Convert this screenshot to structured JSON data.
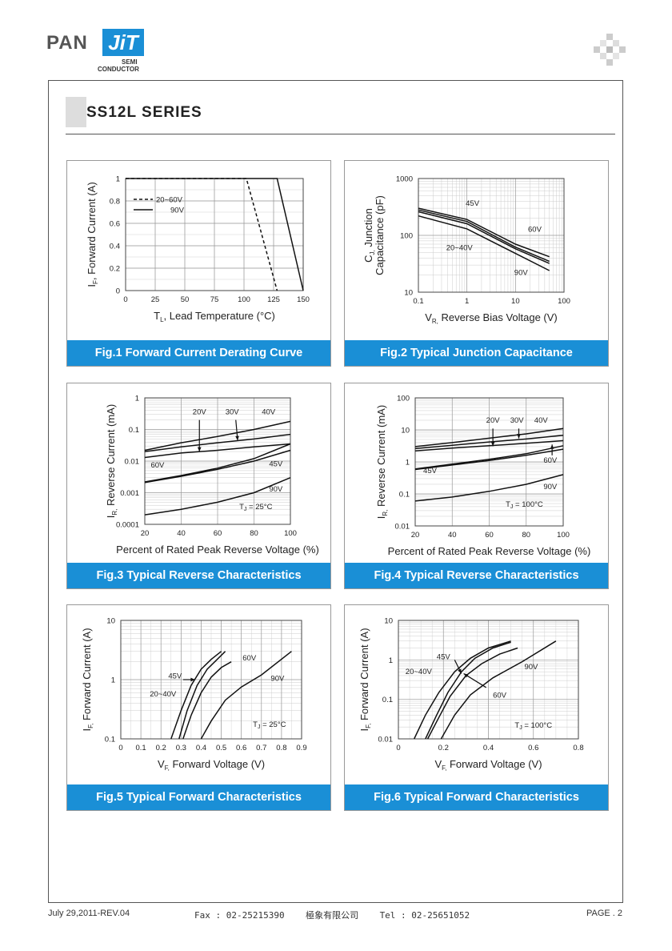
{
  "brand": {
    "pan": "PAN",
    "jit": "JiT",
    "semi": "SEMI",
    "conductor": "CONDUCTOR"
  },
  "page_title": "SS12L SERIES",
  "footer": {
    "date_rev": "July 29,2011-REV.04",
    "contact": "Fax : 02-25215390    極象有限公司    Tel : 02-25651052",
    "page": "PAGE . 2"
  },
  "chart_data": [
    {
      "type": "line",
      "title": "Fig.1 Forward Current Derating Curve",
      "xlabel": "T",
      "xlabel_sub": "L",
      "xlabel_rest": ", Lead Temperature  (°C)",
      "ylabel": "I",
      "ylabel_sub": "F",
      "ylabel_rest": ", Forward Current (A)",
      "xlim": [
        0,
        150
      ],
      "ylim": [
        0,
        1
      ],
      "xscale": "linear",
      "yscale": "linear",
      "xticks": [
        0,
        25,
        50,
        75,
        100,
        125,
        150
      ],
      "yticks": [
        0,
        0.2,
        0.4,
        0.6,
        0.8,
        1
      ],
      "ytick_labels": [
        "0",
        "0.2",
        "0.4",
        "0.6",
        "0.8",
        "1"
      ],
      "legend": [
        {
          "label": "20~60V",
          "style": "dashed"
        },
        {
          "label": "90V",
          "style": "solid"
        }
      ],
      "legend_position": "top-left",
      "series": [
        {
          "name": "20~60V",
          "style": "dashed",
          "x": [
            0,
            102,
            128
          ],
          "y": [
            1,
            1,
            0
          ]
        },
        {
          "name": "90V",
          "style": "solid",
          "x": [
            0,
            128,
            150
          ],
          "y": [
            1,
            1,
            0
          ]
        }
      ],
      "annotations": []
    },
    {
      "type": "line",
      "title": "Fig.2 Typical Junction Capacitance",
      "xlabel": "V",
      "xlabel_sub": "R,",
      "xlabel_rest": " Reverse Bias Voltage (V)",
      "ylabel": "C",
      "ylabel_sub": "J,",
      "ylabel_rest": " Junction",
      "ylabel2": "Capacitance (pF)",
      "xlim": [
        0.1,
        100
      ],
      "ylim": [
        10,
        1000
      ],
      "xscale": "log",
      "yscale": "log",
      "xticks": [
        0.1,
        1,
        10,
        100
      ],
      "xtick_labels": [
        "0.1",
        "1",
        "10",
        "100"
      ],
      "yticks": [
        10,
        100,
        1000
      ],
      "ytick_labels": [
        "10",
        "100",
        "1000"
      ],
      "series": [
        {
          "name": "45V",
          "x": [
            0.1,
            1,
            10,
            50
          ],
          "y": [
            300,
            190,
            70,
            42
          ]
        },
        {
          "name": "60V",
          "x": [
            0.1,
            1,
            10,
            50
          ],
          "y": [
            280,
            175,
            62,
            35
          ]
        },
        {
          "name": "20~40V",
          "x": [
            0.1,
            1,
            10,
            50
          ],
          "y": [
            260,
            160,
            58,
            32
          ]
        },
        {
          "name": "90V",
          "x": [
            0.1,
            1,
            10,
            50
          ],
          "y": [
            220,
            130,
            48,
            24
          ]
        }
      ],
      "annotations": [
        {
          "text": "45V",
          "x": 1.3,
          "y": 330
        },
        {
          "text": "60V",
          "x": 25,
          "y": 115
        },
        {
          "text": "20~40V",
          "x": 0.7,
          "y": 55
        },
        {
          "text": "90V",
          "x": 13,
          "y": 20
        }
      ]
    },
    {
      "type": "line",
      "title": "Fig.3 Typical Reverse Characteristics",
      "xlabel": "Percent of Rated Peak Reverse Voltage (%)",
      "ylabel": "I",
      "ylabel_sub": "R,",
      "ylabel_rest": " Reverse Current (mA)",
      "xlim": [
        20,
        100
      ],
      "ylim": [
        0.0001,
        1
      ],
      "xscale": "linear",
      "yscale": "log",
      "xticks": [
        20,
        40,
        60,
        80,
        100
      ],
      "yticks": [
        0.0001,
        0.001,
        0.01,
        0.1,
        1
      ],
      "ytick_labels": [
        "0.0001",
        "0.001",
        "0.01",
        "0.1",
        "1"
      ],
      "series": [
        {
          "name": "40V",
          "x": [
            20,
            40,
            60,
            80,
            100
          ],
          "y": [
            0.022,
            0.038,
            0.06,
            0.1,
            0.18
          ]
        },
        {
          "name": "30V",
          "x": [
            20,
            40,
            60,
            80,
            100
          ],
          "y": [
            0.02,
            0.028,
            0.038,
            0.05,
            0.07
          ]
        },
        {
          "name": "20V",
          "x": [
            20,
            40,
            60,
            80,
            100
          ],
          "y": [
            0.013,
            0.018,
            0.022,
            0.028,
            0.035
          ]
        },
        {
          "name": "60V",
          "x": [
            20,
            40,
            60,
            80,
            100
          ],
          "y": [
            0.0022,
            0.0035,
            0.006,
            0.012,
            0.035
          ]
        },
        {
          "name": "45V",
          "x": [
            20,
            40,
            60,
            80,
            100
          ],
          "y": [
            0.0021,
            0.0033,
            0.0055,
            0.01,
            0.022
          ]
        },
        {
          "name": "90V",
          "x": [
            20,
            40,
            60,
            80,
            100
          ],
          "y": [
            0.0002,
            0.0003,
            0.0005,
            0.001,
            0.003
          ]
        }
      ],
      "annotations": [
        {
          "text": "20V",
          "x": 50,
          "y": 0.3
        },
        {
          "text": "30V",
          "x": 68,
          "y": 0.3
        },
        {
          "text": "40V",
          "x": 88,
          "y": 0.3
        },
        {
          "text": "60V",
          "x": 27,
          "y": 0.0062
        },
        {
          "text": "45V",
          "x": 92,
          "y": 0.0068
        },
        {
          "text": "90V",
          "x": 92,
          "y": 0.0011
        },
        {
          "text": "T",
          "x": 81,
          "y": 0.0003,
          "sub": "J",
          "rest": " = 25°C"
        }
      ],
      "arrows": [
        {
          "from_x": 50,
          "from_y": 0.2,
          "to_x": 50,
          "to_y": 0.02
        },
        {
          "from_x": 70,
          "from_y": 0.2,
          "to_x": 71,
          "to_y": 0.045
        }
      ]
    },
    {
      "type": "line",
      "title": "Fig.4 Typical Reverse Characteristics",
      "xlabel": "Percent of Rated Peak Reverse Voltage (%)",
      "ylabel": "I",
      "ylabel_sub": "R,",
      "ylabel_rest": " Reverse Current (mA)",
      "xlim": [
        20,
        100
      ],
      "ylim": [
        0.01,
        100
      ],
      "xscale": "linear",
      "yscale": "log",
      "xticks": [
        20,
        40,
        60,
        80,
        100
      ],
      "yticks": [
        0.01,
        0.1,
        1,
        10,
        100
      ],
      "ytick_labels": [
        "0.01",
        "0.1",
        "1",
        "10",
        "100"
      ],
      "series": [
        {
          "name": "40V",
          "x": [
            20,
            40,
            60,
            80,
            100
          ],
          "y": [
            3,
            4,
            5.5,
            7.5,
            11
          ]
        },
        {
          "name": "30V",
          "x": [
            20,
            40,
            60,
            80,
            100
          ],
          "y": [
            2.6,
            3.3,
            4.2,
            5.2,
            6.8
          ]
        },
        {
          "name": "20V",
          "x": [
            20,
            40,
            60,
            80,
            100
          ],
          "y": [
            2.2,
            2.7,
            3.2,
            3.8,
            4.6
          ]
        },
        {
          "name": "60V",
          "x": [
            20,
            40,
            60,
            80,
            100
          ],
          "y": [
            0.6,
            0.85,
            1.2,
            1.8,
            3.2
          ]
        },
        {
          "name": "45V",
          "x": [
            20,
            40,
            60,
            80,
            100
          ],
          "y": [
            0.58,
            0.8,
            1.1,
            1.6,
            2.5
          ]
        },
        {
          "name": "90V",
          "x": [
            20,
            40,
            60,
            80,
            100
          ],
          "y": [
            0.06,
            0.08,
            0.12,
            0.2,
            0.4
          ]
        }
      ],
      "annotations": [
        {
          "text": "20V",
          "x": 62,
          "y": 17
        },
        {
          "text": "30V",
          "x": 75,
          "y": 17
        },
        {
          "text": "40V",
          "x": 88,
          "y": 17
        },
        {
          "text": "60V",
          "x": 93,
          "y": 0.95
        },
        {
          "text": "45V",
          "x": 28,
          "y": 0.45
        },
        {
          "text": "90V",
          "x": 93,
          "y": 0.14
        },
        {
          "text": "T",
          "x": 79,
          "y": 0.04,
          "sub": "J",
          "rest": " = 100°C"
        }
      ],
      "arrows": [
        {
          "from_x": 62,
          "from_y": 11,
          "to_x": 62,
          "to_y": 3.1
        },
        {
          "from_x": 76,
          "from_y": 11,
          "to_x": 76,
          "to_y": 5.4
        },
        {
          "from_x": 94,
          "from_y": 1.6,
          "to_x": 94,
          "to_y": 3.5
        }
      ]
    },
    {
      "type": "line",
      "title": "Fig.5 Typical Forward Characteristics",
      "xlabel": "V",
      "xlabel_sub": "F,",
      "xlabel_rest": " Forward Voltage (V)",
      "ylabel": "I",
      "ylabel_sub": "F,",
      "ylabel_rest": " Forward Current (A)",
      "xlim": [
        0,
        0.9
      ],
      "ylim": [
        0.1,
        10
      ],
      "xscale": "linear",
      "yscale": "log",
      "xticks": [
        0,
        0.1,
        0.2,
        0.3,
        0.4,
        0.5,
        0.6,
        0.7,
        0.8,
        0.9
      ],
      "xtick_labels": [
        "0",
        "0.1",
        "0.2",
        "0.3",
        "0.4",
        "0.5",
        "0.6",
        "0.7",
        "0.8",
        "0.9"
      ],
      "yticks": [
        0.1,
        1,
        10
      ],
      "ytick_labels": [
        "0.1",
        "1",
        "10"
      ],
      "series": [
        {
          "name": "20~40V",
          "x": [
            0.25,
            0.3,
            0.35,
            0.4,
            0.45,
            0.5
          ],
          "y": [
            0.1,
            0.3,
            0.8,
            1.5,
            2.2,
            3
          ]
        },
        {
          "name": "45V",
          "x": [
            0.29,
            0.33,
            0.38,
            0.43,
            0.48,
            0.52
          ],
          "y": [
            0.1,
            0.3,
            0.8,
            1.5,
            2.2,
            3
          ]
        },
        {
          "name": "60V",
          "x": [
            0.31,
            0.35,
            0.4,
            0.45,
            0.5,
            0.55
          ],
          "y": [
            0.1,
            0.25,
            0.6,
            1.1,
            1.6,
            2
          ]
        },
        {
          "name": "90V",
          "x": [
            0.4,
            0.45,
            0.52,
            0.6,
            0.7,
            0.85
          ],
          "y": [
            0.1,
            0.2,
            0.45,
            0.75,
            1.2,
            3
          ]
        }
      ],
      "annotations": [
        {
          "text": "60V",
          "x": 0.64,
          "y": 2.1
        },
        {
          "text": "45V",
          "x": 0.27,
          "y": 1.05
        },
        {
          "text": "90V",
          "x": 0.78,
          "y": 0.95
        },
        {
          "text": "20~40V",
          "x": 0.21,
          "y": 0.52
        },
        {
          "text": "T",
          "x": 0.74,
          "y": 0.16,
          "sub": "J",
          "rest": " = 25°C"
        }
      ],
      "arrows": [
        {
          "from_x": 0.31,
          "from_y": 1,
          "to_x": 0.37,
          "to_y": 1
        }
      ]
    },
    {
      "type": "line",
      "title": "Fig.6 Typical Forward Characteristics",
      "xlabel": "V",
      "xlabel_sub": "F,",
      "xlabel_rest": " Forward Voltage (V)",
      "ylabel": "I",
      "ylabel_sub": "F,",
      "ylabel_rest": " Forward Current (A)",
      "xlim": [
        0,
        0.8
      ],
      "ylim": [
        0.01,
        10
      ],
      "xscale": "linear",
      "yscale": "log",
      "xticks": [
        0,
        0.2,
        0.4,
        0.6,
        0.8
      ],
      "xtick_labels": [
        "0",
        "0.2",
        "0.4",
        "0.6",
        "0.8"
      ],
      "yticks": [
        0.01,
        0.1,
        1,
        10
      ],
      "ytick_labels": [
        "0.01",
        "0.1",
        "1",
        "10"
      ],
      "series": [
        {
          "name": "20~40V",
          "x": [
            0.07,
            0.12,
            0.18,
            0.25,
            0.32,
            0.4,
            0.5
          ],
          "y": [
            0.01,
            0.04,
            0.15,
            0.5,
            1.1,
            2,
            3
          ]
        },
        {
          "name": "45V",
          "x": [
            0.12,
            0.17,
            0.22,
            0.28,
            0.34,
            0.42,
            0.5
          ],
          "y": [
            0.01,
            0.04,
            0.15,
            0.5,
            1.1,
            2,
            2.8
          ]
        },
        {
          "name": "60V",
          "x": [
            0.13,
            0.18,
            0.23,
            0.3,
            0.37,
            0.45,
            0.53
          ],
          "y": [
            0.01,
            0.035,
            0.12,
            0.4,
            0.8,
            1.4,
            2
          ]
        },
        {
          "name": "90V",
          "x": [
            0.19,
            0.25,
            0.32,
            0.42,
            0.55,
            0.7
          ],
          "y": [
            0.01,
            0.04,
            0.13,
            0.35,
            0.9,
            3
          ]
        }
      ],
      "annotations": [
        {
          "text": "45V",
          "x": 0.2,
          "y": 1.05
        },
        {
          "text": "20~40V",
          "x": 0.09,
          "y": 0.44
        },
        {
          "text": "90V",
          "x": 0.59,
          "y": 0.58
        },
        {
          "text": "60V",
          "x": 0.45,
          "y": 0.11
        },
        {
          "text": "T",
          "x": 0.6,
          "y": 0.019,
          "sub": "J",
          "rest": " = 100°C"
        }
      ],
      "arrows": [
        {
          "from_x": 0.25,
          "from_y": 1,
          "to_x": 0.28,
          "to_y": 0.45
        },
        {
          "from_x": 0.39,
          "from_y": 0.2,
          "to_x": 0.29,
          "to_y": 0.45
        }
      ]
    }
  ]
}
